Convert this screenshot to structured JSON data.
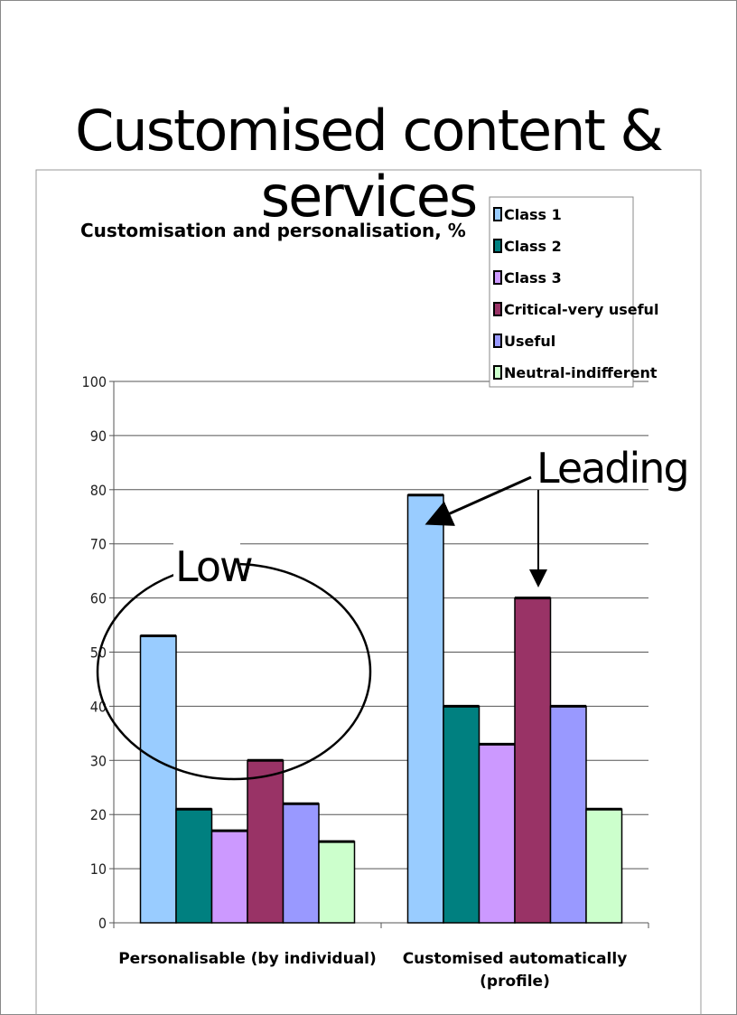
{
  "slide_title": "Customised content & services",
  "chart_data": {
    "type": "bar",
    "title": "Customisation and personalisation, %",
    "categories": [
      "Personalisable (by individual)",
      "Customised automatically (profile)"
    ],
    "category_lines": [
      [
        "Personalisable (by individual)"
      ],
      [
        "Customised automatically",
        "(profile)"
      ]
    ],
    "series": [
      {
        "name": "Class 1",
        "color": "#99CCFF",
        "values": [
          53,
          79
        ]
      },
      {
        "name": "Class 2",
        "color": "#008080",
        "values": [
          21,
          40
        ]
      },
      {
        "name": "Class 3",
        "color": "#CC99FF",
        "values": [
          17,
          33
        ]
      },
      {
        "name": "Critical-very useful",
        "color": "#993366",
        "values": [
          30,
          60
        ]
      },
      {
        "name": "Useful",
        "color": "#9999FF",
        "values": [
          22,
          40
        ]
      },
      {
        "name": "Neutral-indifferent",
        "color": "#CCFFCC",
        "values": [
          15,
          21
        ]
      }
    ],
    "ylim": [
      0,
      100
    ],
    "yticks": [
      0,
      10,
      20,
      30,
      40,
      50,
      60,
      70,
      80,
      90,
      100
    ],
    "grid": true,
    "legend": "top-right"
  },
  "annotations": {
    "low": "Low",
    "leading": "Leading"
  }
}
